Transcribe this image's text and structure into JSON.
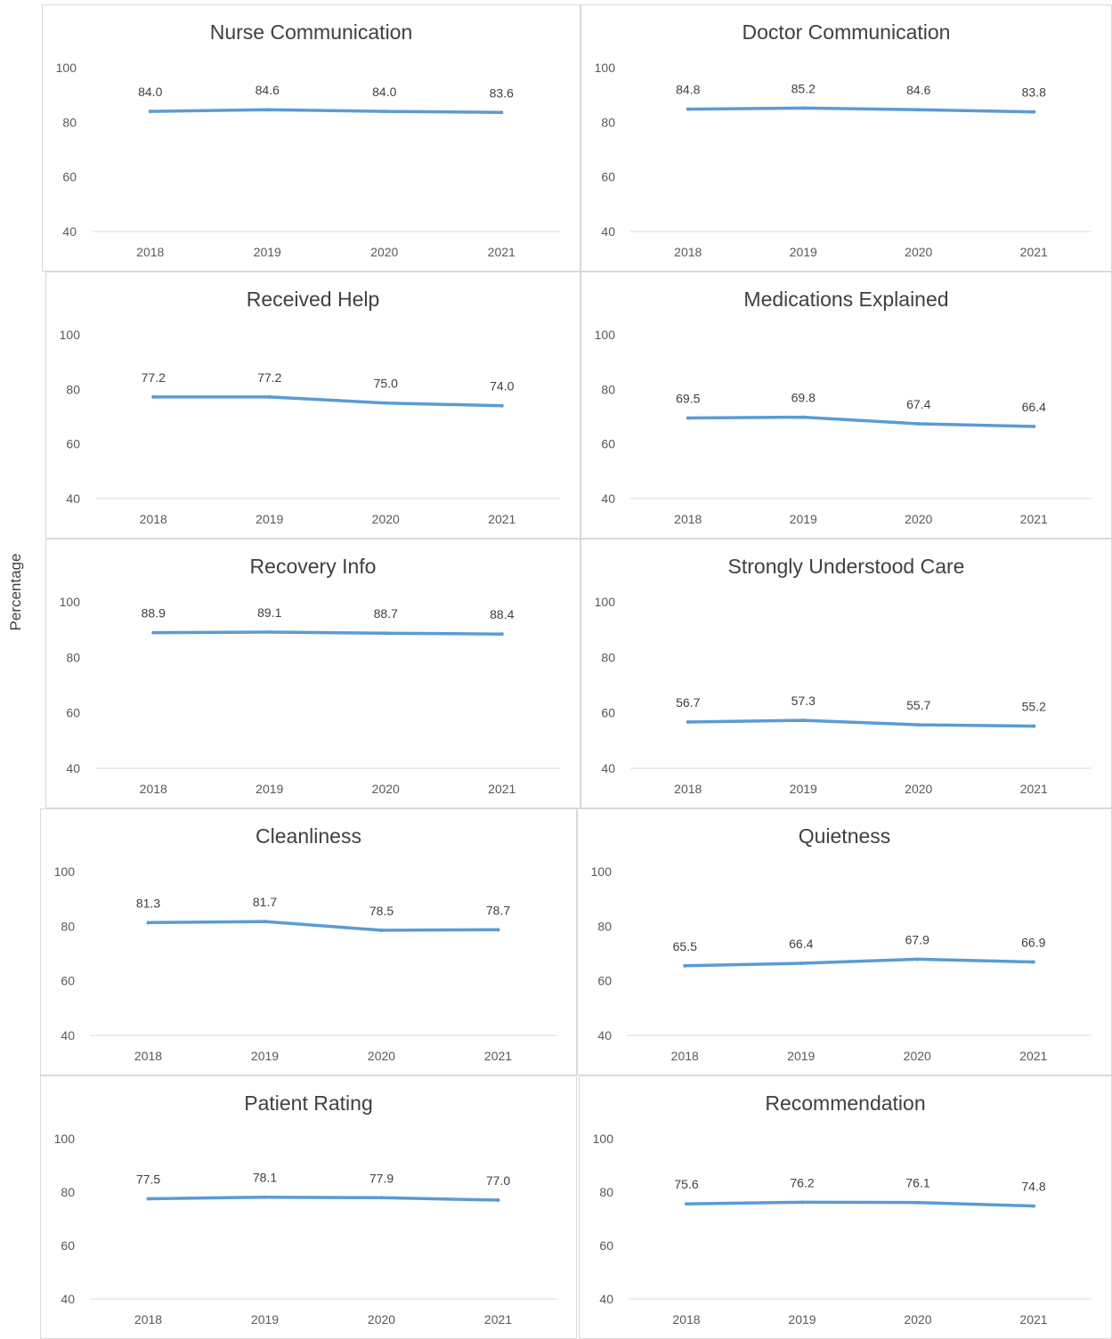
{
  "y_axis_label": "Percentage",
  "chart_data": [
    {
      "type": "line",
      "title": "Nurse Communication",
      "categories": [
        "2018",
        "2019",
        "2020",
        "2021"
      ],
      "values": [
        84.0,
        84.6,
        84.0,
        83.6
      ],
      "labels": [
        "84.0",
        "84.6",
        "84.0",
        "83.6"
      ],
      "yticks": [
        "40",
        "60",
        "80",
        "100"
      ],
      "ylim": [
        40,
        100
      ],
      "color": "#5b9bd5",
      "grid": false
    },
    {
      "type": "line",
      "title": "Doctor Communication",
      "categories": [
        "2018",
        "2019",
        "2020",
        "2021"
      ],
      "values": [
        84.8,
        85.2,
        84.6,
        83.8
      ],
      "labels": [
        "84.8",
        "85.2",
        "84.6",
        "83.8"
      ],
      "yticks": [
        "40",
        "60",
        "80",
        "100"
      ],
      "ylim": [
        40,
        100
      ],
      "color": "#5b9bd5",
      "grid": false
    },
    {
      "type": "line",
      "title": "Received Help",
      "categories": [
        "2018",
        "2019",
        "2020",
        "2021"
      ],
      "values": [
        77.2,
        77.2,
        75.0,
        74.0
      ],
      "labels": [
        "77.2",
        "77.2",
        "75.0",
        "74.0"
      ],
      "yticks": [
        "40",
        "60",
        "80",
        "100"
      ],
      "ylim": [
        40,
        100
      ],
      "color": "#5b9bd5",
      "grid": false
    },
    {
      "type": "line",
      "title": "Medications Explained",
      "categories": [
        "2018",
        "2019",
        "2020",
        "2021"
      ],
      "values": [
        69.5,
        69.8,
        67.4,
        66.4
      ],
      "labels": [
        "69.5",
        "69.8",
        "67.4",
        "66.4"
      ],
      "yticks": [
        "40",
        "60",
        "80",
        "100"
      ],
      "ylim": [
        40,
        100
      ],
      "color": "#5b9bd5",
      "grid": false
    },
    {
      "type": "line",
      "title": "Recovery Info",
      "categories": [
        "2018",
        "2019",
        "2020",
        "2021"
      ],
      "values": [
        88.9,
        89.1,
        88.7,
        88.4
      ],
      "labels": [
        "88.9",
        "89.1",
        "88.7",
        "88.4"
      ],
      "yticks": [
        "40",
        "60",
        "80",
        "100"
      ],
      "ylim": [
        40,
        100
      ],
      "color": "#5b9bd5",
      "grid": false
    },
    {
      "type": "line",
      "title": "Strongly Understood Care",
      "categories": [
        "2018",
        "2019",
        "2020",
        "2021"
      ],
      "values": [
        56.7,
        57.3,
        55.7,
        55.2
      ],
      "labels": [
        "56.7",
        "57.3",
        "55.7",
        "55.2"
      ],
      "yticks": [
        "40",
        "60",
        "80",
        "100"
      ],
      "ylim": [
        40,
        100
      ],
      "color": "#5b9bd5",
      "grid": false
    },
    {
      "type": "line",
      "title": "Cleanliness",
      "categories": [
        "2018",
        "2019",
        "2020",
        "2021"
      ],
      "values": [
        81.3,
        81.7,
        78.5,
        78.7
      ],
      "labels": [
        "81.3",
        "81.7",
        "78.5",
        "78.7"
      ],
      "yticks": [
        "40",
        "60",
        "80",
        "100"
      ],
      "ylim": [
        40,
        100
      ],
      "color": "#5b9bd5",
      "grid": false
    },
    {
      "type": "line",
      "title": "Quietness",
      "categories": [
        "2018",
        "2019",
        "2020",
        "2021"
      ],
      "values": [
        65.5,
        66.4,
        67.9,
        66.9
      ],
      "labels": [
        "65.5",
        "66.4",
        "67.9",
        "66.9"
      ],
      "yticks": [
        "40",
        "60",
        "80",
        "100"
      ],
      "ylim": [
        40,
        100
      ],
      "color": "#5b9bd5",
      "grid": false
    },
    {
      "type": "line",
      "title": "Patient Rating",
      "categories": [
        "2018",
        "2019",
        "2020",
        "2021"
      ],
      "values": [
        77.5,
        78.1,
        77.9,
        77.0
      ],
      "labels": [
        "77.5",
        "78.1",
        "77.9",
        "77.0"
      ],
      "yticks": [
        "40",
        "60",
        "80",
        "100"
      ],
      "ylim": [
        40,
        100
      ],
      "color": "#5b9bd5",
      "grid": false
    },
    {
      "type": "line",
      "title": "Recommendation",
      "categories": [
        "2018",
        "2019",
        "2020",
        "2021"
      ],
      "values": [
        75.6,
        76.2,
        76.1,
        74.8
      ],
      "labels": [
        "75.6",
        "76.2",
        "76.1",
        "74.8"
      ],
      "yticks": [
        "40",
        "60",
        "80",
        "100"
      ],
      "ylim": [
        40,
        100
      ],
      "color": "#5b9bd5",
      "grid": false
    }
  ]
}
